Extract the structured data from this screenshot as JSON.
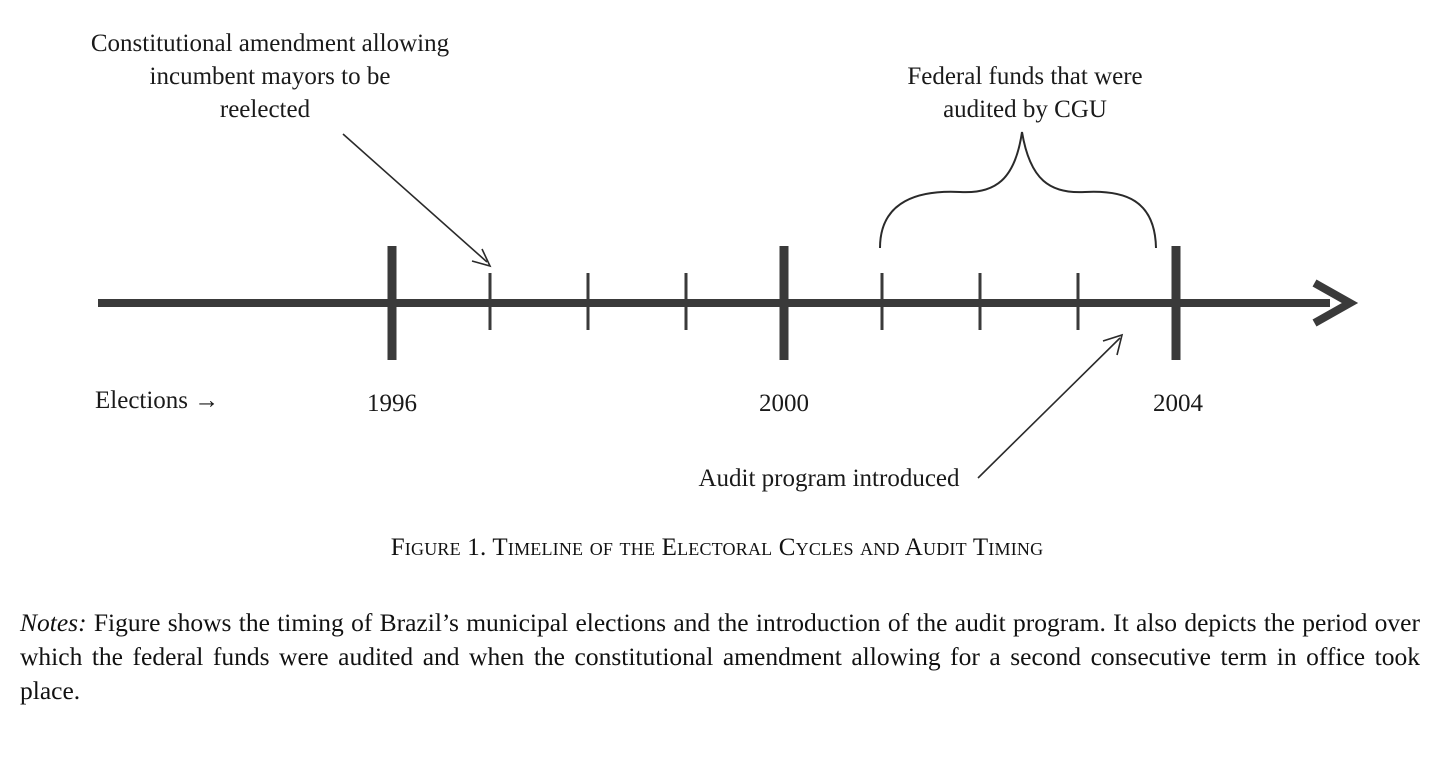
{
  "annotations": {
    "amendment": [
      "Constitutional amendment allowing",
      "incumbent mayors to be",
      "reelected"
    ],
    "audited_funds": [
      "Federal funds that were",
      "audited by CGU"
    ],
    "audit_program": "Audit program introduced"
  },
  "timeline": {
    "elections_label": "Elections →",
    "years": [
      "1996",
      "2000",
      "2004"
    ]
  },
  "caption": "Figure 1. Timeline of the Electoral Cycles and Audit Timing",
  "notes": {
    "label": "Notes:",
    "text": " Figure shows the timing of Brazil’s municipal elections and the introduction of the audit program. It also depicts the period over which the federal funds were audited and when the constitutional amendment allowing for a second consecutive term in office took place."
  },
  "colors": {
    "line": "#3a3a3a",
    "text": "#1a1a1a"
  }
}
